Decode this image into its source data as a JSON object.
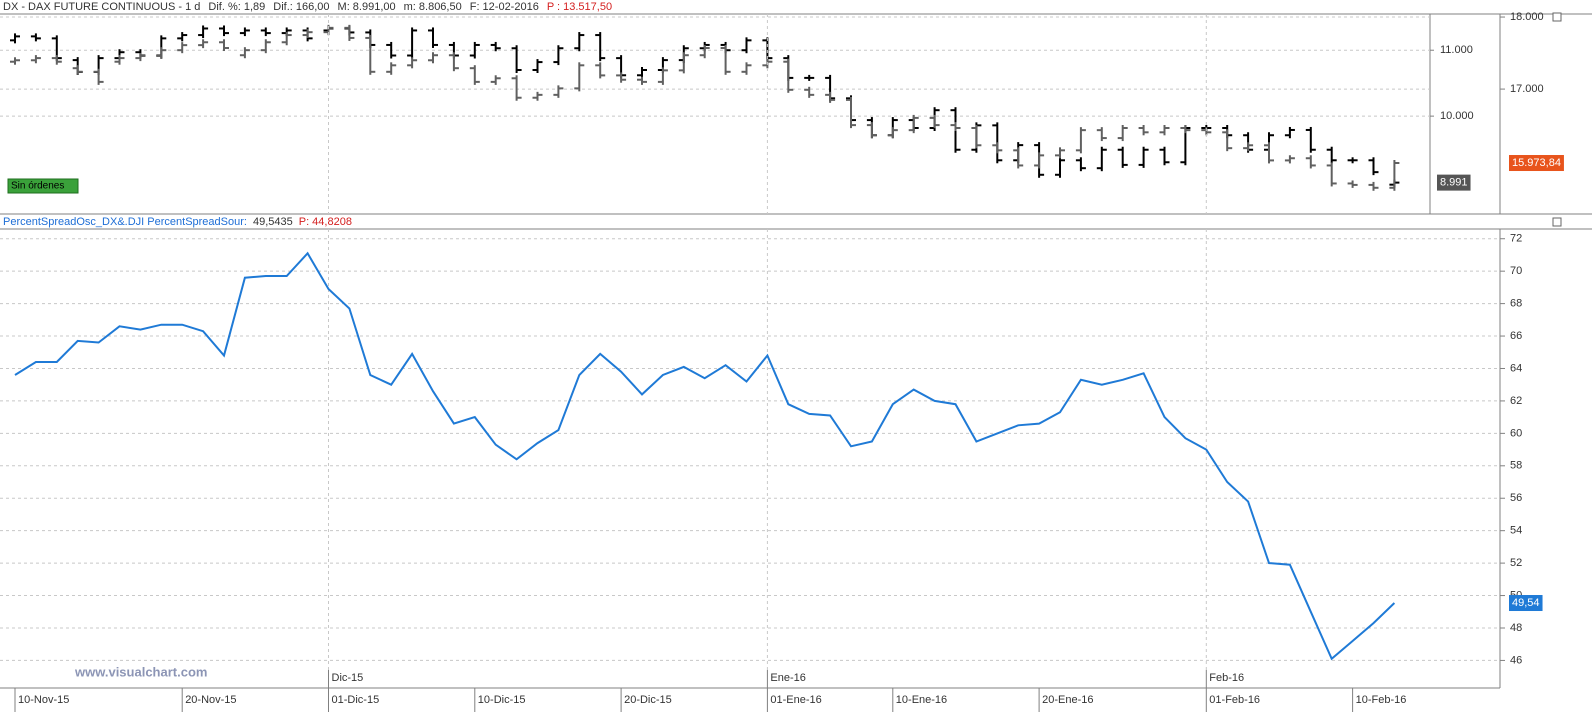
{
  "chart_data": [
    {
      "type": "ohlc",
      "title": "DX - DAX FUTURE CONTINUOUS -  1 d",
      "header_items": [
        "Dif. %: 1,89",
        "Dif.: 166,00",
        "M: 8.991,00",
        "m: 8.806,50",
        "F: 12-02-2016"
      ],
      "header_price": "P : 13.517,50",
      "badge": "Sin órdenes",
      "ylim": [
        8530,
        11580
      ],
      "yticks": [
        {
          "value": 11000,
          "label": "11.000"
        },
        {
          "value": 10000,
          "label": "10.000"
        }
      ],
      "y2lim": [
        15280,
        18070
      ],
      "y2ticks": [
        {
          "value": 18000,
          "label": "18.000"
        },
        {
          "value": 17000,
          "label": "17.000"
        }
      ],
      "grid": true,
      "series": [
        {
          "color": "#000000",
          "last_label": "8.991",
          "label_color": "#555555",
          "open": [
            11150,
            11210,
            11180,
            10850,
            10670,
            10880,
            10970,
            10920,
            11180,
            11230,
            11330,
            11260,
            11300,
            11260,
            11300,
            11300,
            11330,
            11270,
            11080,
            10920,
            11300,
            11080,
            10920,
            11080,
            11030,
            10700,
            10820,
            11030,
            11230,
            10880,
            10620,
            10700,
            10850,
            11030,
            11080,
            11000,
            11150,
            10880,
            10580,
            10580,
            10270,
            9940,
            9710,
            9940,
            9820,
            10090,
            9490,
            9860,
            9330,
            9560,
            9110,
            9330,
            9210,
            9490,
            9260,
            9490,
            9300,
            9820,
            9820,
            9710,
            9490,
            9710,
            9790,
            9490,
            9330,
            9330,
            8960
          ],
          "close": [
            11210,
            11180,
            10880,
            10670,
            10880,
            10970,
            10920,
            11180,
            11230,
            11330,
            11260,
            11300,
            11260,
            11300,
            11180,
            11330,
            11270,
            11080,
            10920,
            11300,
            11080,
            10920,
            11080,
            11030,
            10700,
            10820,
            11030,
            11230,
            10880,
            10620,
            10700,
            10850,
            11030,
            11080,
            11000,
            11150,
            10880,
            10580,
            10580,
            10270,
            9940,
            9710,
            9940,
            9820,
            10090,
            9490,
            9860,
            9330,
            9560,
            9110,
            9330,
            9210,
            9490,
            9260,
            9490,
            9300,
            9820,
            9820,
            9710,
            9490,
            9710,
            9790,
            9490,
            9330,
            9330,
            9150,
            8991
          ]
        },
        {
          "color": "#606060",
          "axis": "y2",
          "last_label": "15.973,84",
          "label_color": "#e8541c",
          "open": [
            17380,
            17400,
            17430,
            17290,
            17240,
            17380,
            17430,
            17460,
            17540,
            17610,
            17650,
            17470,
            17540,
            17650,
            17750,
            17790,
            17850,
            17710,
            17240,
            17330,
            17400,
            17470,
            17290,
            17100,
            17150,
            16880,
            16920,
            17010,
            17330,
            17190,
            17130,
            17100,
            17260,
            17470,
            17570,
            17240,
            17330,
            17380,
            16990,
            16920,
            16850,
            16500,
            16360,
            16430,
            16600,
            16500,
            16460,
            16220,
            16150,
            15940,
            16080,
            16150,
            16430,
            16320,
            16460,
            16400,
            16460,
            16430,
            16400,
            16180,
            16220,
            16010,
            16040,
            15940,
            15690,
            15670,
            15630
          ],
          "close": [
            17400,
            17430,
            17380,
            17240,
            17100,
            17430,
            17460,
            17540,
            17610,
            17650,
            17570,
            17540,
            17650,
            17750,
            17790,
            17850,
            17710,
            17240,
            17330,
            17400,
            17470,
            17290,
            17100,
            17150,
            16880,
            16920,
            17010,
            17330,
            17190,
            17130,
            17100,
            17260,
            17470,
            17570,
            17240,
            17330,
            17380,
            16990,
            16920,
            16850,
            16500,
            16360,
            16430,
            16600,
            16500,
            16460,
            16220,
            16150,
            15940,
            16080,
            16150,
            16430,
            16320,
            16460,
            16400,
            16460,
            16430,
            16400,
            16180,
            16220,
            16010,
            16040,
            15940,
            15690,
            15670,
            15630,
            15973.84
          ]
        }
      ]
    },
    {
      "type": "line",
      "title": "PercentSpreadOsc_DX&.DJI PercentSpreadSour:",
      "readout": "49,5435",
      "header_price": "P: 44,8208",
      "watermark": "www.visualchart.com",
      "ylim": [
        44.3,
        72.6
      ],
      "yticks": [
        46,
        48,
        50,
        52,
        54,
        56,
        58,
        60,
        62,
        64,
        66,
        68,
        70,
        72
      ],
      "grid": true,
      "categories": [
        "10-Nov-15",
        null,
        null,
        null,
        null,
        null,
        null,
        null,
        "20-Nov-15",
        null,
        null,
        null,
        null,
        null,
        null,
        "01-Dic-15",
        null,
        null,
        null,
        null,
        null,
        null,
        "10-Dic-15",
        null,
        null,
        null,
        null,
        null,
        null,
        "20-Dic-15",
        null,
        null,
        null,
        null,
        null,
        null,
        "01-Ene-16",
        null,
        null,
        null,
        null,
        null,
        "10-Ene-16",
        null,
        null,
        null,
        null,
        null,
        null,
        "20-Ene-16",
        null,
        null,
        null,
        null,
        null,
        null,
        null,
        "01-Feb-16",
        null,
        null,
        null,
        null,
        null,
        null,
        "10-Feb-16",
        null,
        null
      ],
      "months": [
        null,
        null,
        null,
        null,
        null,
        null,
        null,
        null,
        null,
        null,
        null,
        null,
        null,
        null,
        null,
        "Dic-15",
        null,
        null,
        null,
        null,
        null,
        null,
        null,
        null,
        null,
        null,
        null,
        null,
        null,
        null,
        null,
        null,
        null,
        null,
        null,
        null,
        "Ene-16",
        null,
        null,
        null,
        null,
        null,
        null,
        null,
        null,
        null,
        null,
        null,
        null,
        null,
        null,
        null,
        null,
        null,
        null,
        null,
        null,
        "Feb-16",
        null,
        null,
        null,
        null,
        null,
        null,
        null,
        null,
        null
      ],
      "series": [
        {
          "color": "#1f7ad6",
          "last_label": "49,54",
          "values": [
            63.6,
            64.4,
            64.4,
            65.7,
            65.6,
            66.6,
            66.4,
            66.7,
            66.7,
            66.3,
            64.8,
            69.6,
            69.7,
            69.7,
            71.1,
            68.9,
            67.7,
            63.6,
            63.0,
            64.9,
            62.6,
            60.6,
            61.0,
            59.3,
            58.4,
            59.4,
            60.2,
            63.6,
            64.9,
            63.8,
            62.4,
            63.6,
            64.1,
            63.4,
            64.2,
            63.2,
            64.8,
            61.8,
            61.2,
            61.1,
            59.2,
            59.5,
            61.8,
            62.7,
            62.0,
            61.8,
            59.5,
            60.0,
            60.5,
            60.6,
            61.3,
            63.3,
            63.0,
            63.3,
            63.7,
            61.0,
            59.7,
            59.0,
            57.0,
            55.8,
            52.0,
            51.9,
            49.0,
            46.1,
            47.2,
            48.3,
            49.54
          ]
        }
      ]
    }
  ]
}
